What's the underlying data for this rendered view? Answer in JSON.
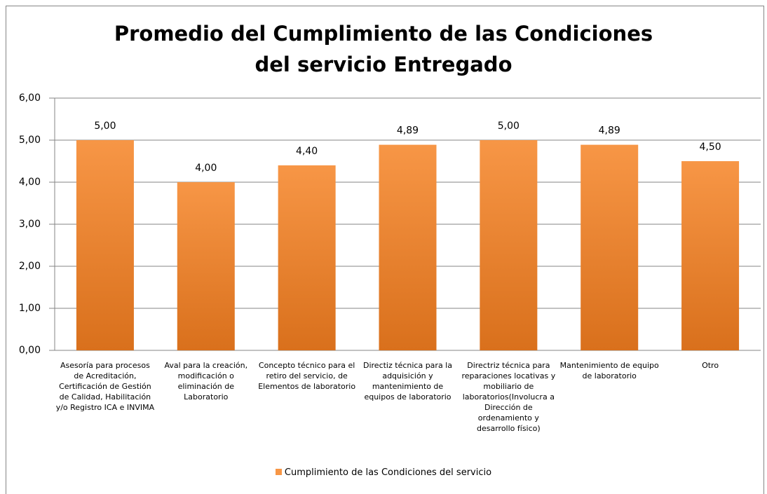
{
  "chart_data": {
    "type": "bar",
    "title": "Promedio del Cumplimiento de las Condiciones del servicio Entregado",
    "categories": [
      "Asesoría para procesos de Acreditación, Certificación de Gestión de Calidad, Habilitación y/o Registro ICA e INVIMA",
      "Aval para la creación, modificación o eliminación de Laboratorio",
      "Concepto técnico para el retiro del servicio, de Elementos de laboratorio",
      "Directiz técnica para la adquisición y mantenimiento de equipos de laboratorio",
      "Directriz técnica para reparaciones locativas y mobiliario de laboratorios(Involucra a Dirección de ordenamiento y desarrollo físico)",
      "Mantenimiento de equipo de laboratorio",
      "Otro"
    ],
    "series": [
      {
        "name": "Cumplimiento de las Condiciones del servicio",
        "color": "#f79646",
        "values": [
          5,
          4,
          4.4,
          4.89,
          5,
          4.89,
          4.5
        ],
        "value_labels": [
          "5,00",
          "4,00",
          "4,40",
          "4,89",
          "5,00",
          "4,89",
          "4,50"
        ]
      }
    ],
    "ylim": [
      0,
      6
    ],
    "yticks": [
      {
        "value": 0,
        "label": "0,00"
      },
      {
        "value": 1,
        "label": "1,00"
      },
      {
        "value": 2,
        "label": "2,00"
      },
      {
        "value": 3,
        "label": "3,00"
      },
      {
        "value": 4,
        "label": "4,00"
      },
      {
        "value": 5,
        "label": "5,00"
      },
      {
        "value": 6,
        "label": "6,00"
      }
    ],
    "grid": true,
    "legend": "bottom"
  }
}
